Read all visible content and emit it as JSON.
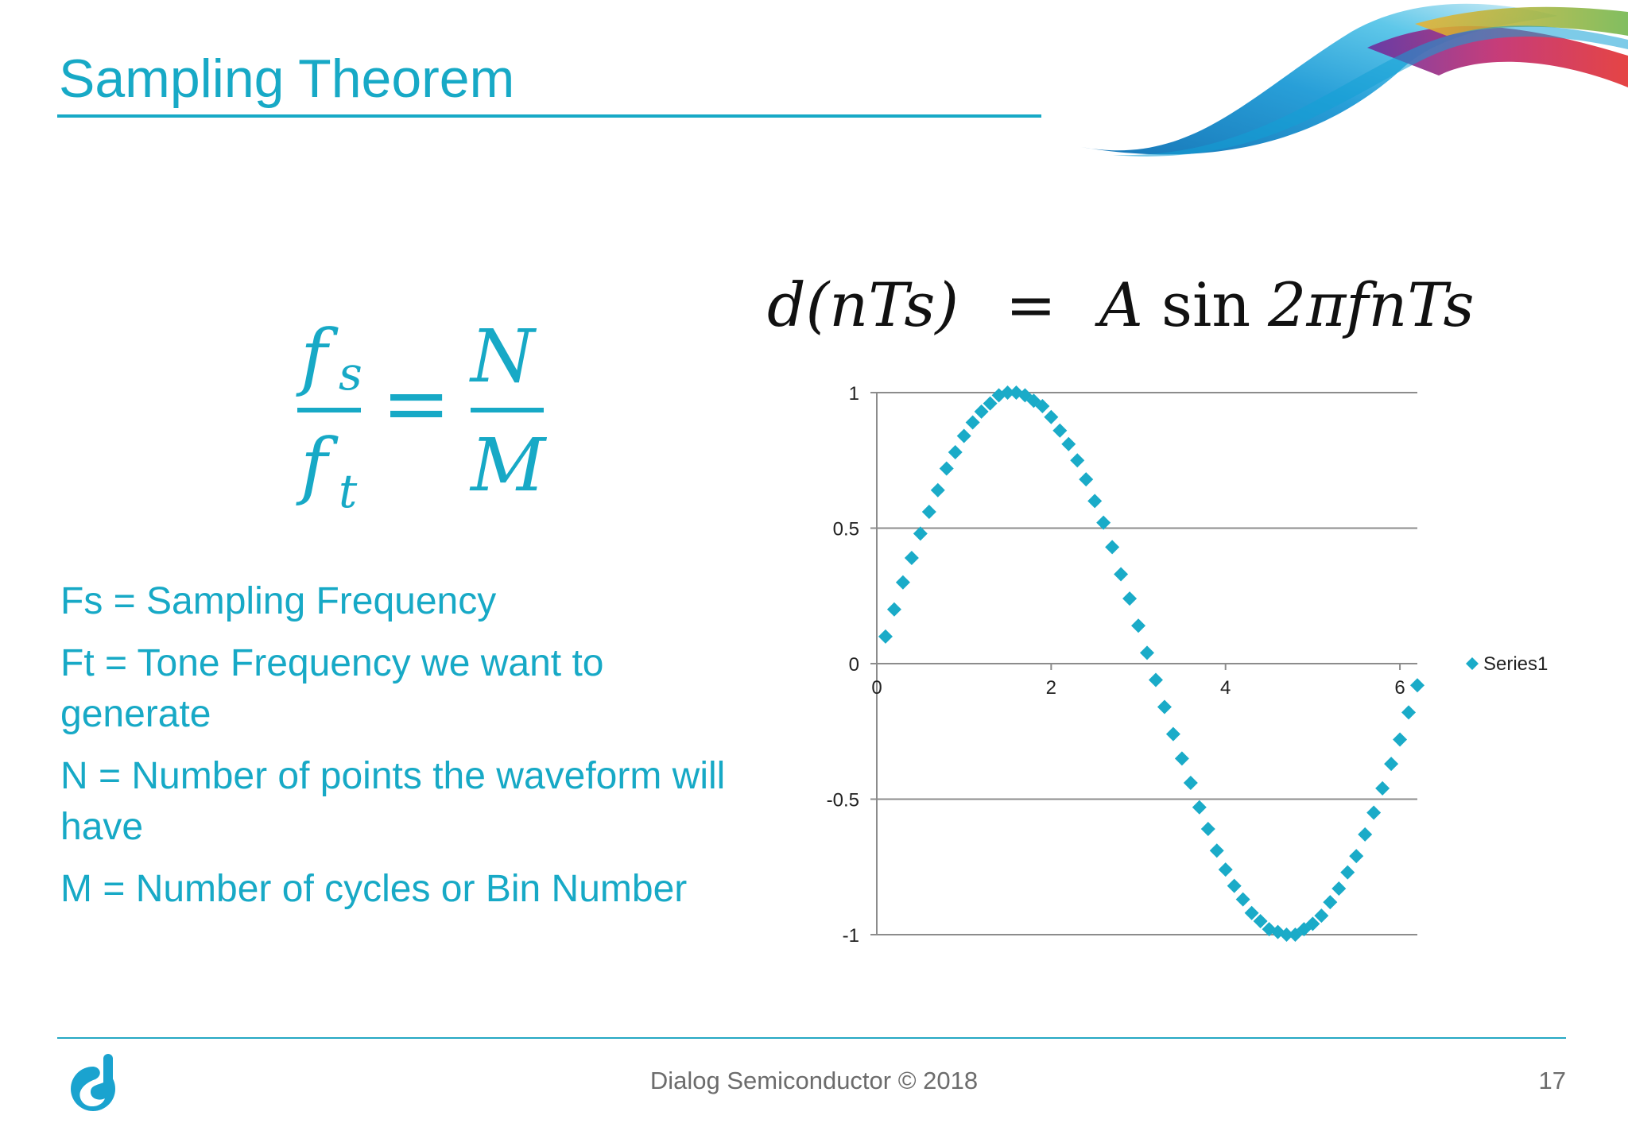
{
  "slide": {
    "title": "Sampling Theorem",
    "page_number": "17",
    "footer": "Dialog Semiconductor © 2018"
  },
  "formulas": {
    "ratio": {
      "numerator_left": "f",
      "numerator_left_sub": "s",
      "denominator_left": "f",
      "denominator_left_sub": "t",
      "equals": "=",
      "numerator_right": "N",
      "denominator_right": "M"
    },
    "signal": {
      "lhs": "d(nTs)",
      "equals": "=",
      "rhs_amp": "A",
      "rhs_fn": "sin",
      "rhs_arg": "2πfnTs"
    }
  },
  "definitions": [
    "Fs = Sampling Frequency",
    "Ft = Tone Frequency we want to generate",
    "N = Number of points the waveform will have",
    "M = Number of cycles or Bin Number"
  ],
  "colors": {
    "accent": "#17a9c6",
    "marker": "#1aabc8",
    "grid": "#8c8c8c",
    "footer_text": "#6c6c6c"
  },
  "icons": {
    "logo": "dialog-logo-icon",
    "decoration": "ribbon-swoosh"
  },
  "chart_data": {
    "type": "scatter",
    "title": "",
    "xlabel": "",
    "ylabel": "",
    "xlim": [
      0,
      6.2
    ],
    "ylim": [
      -1,
      1
    ],
    "x_ticks": [
      "0",
      "2",
      "4",
      "6"
    ],
    "y_ticks": [
      "1",
      "0.5",
      "0",
      "-0.5",
      "-1"
    ],
    "grid": "horizontal",
    "legend": "right",
    "series": [
      {
        "name": "Series1",
        "marker": "diamond",
        "x": [
          0.1,
          0.2,
          0.3,
          0.4,
          0.5,
          0.6,
          0.7,
          0.8,
          0.9,
          1.0,
          1.1,
          1.2,
          1.3,
          1.4,
          1.5,
          1.6,
          1.7,
          1.8,
          1.9,
          2.0,
          2.1,
          2.2,
          2.3,
          2.4,
          2.5,
          2.6,
          2.7,
          2.8,
          2.9,
          3.0,
          3.1,
          3.2,
          3.3,
          3.4,
          3.5,
          3.6,
          3.7,
          3.8,
          3.9,
          4.0,
          4.1,
          4.2,
          4.3,
          4.4,
          4.5,
          4.6,
          4.7,
          4.8,
          4.9,
          5.0,
          5.1,
          5.2,
          5.3,
          5.4,
          5.5,
          5.6,
          5.7,
          5.8,
          5.9,
          6.0,
          6.1,
          6.2
        ],
        "y": [
          0.1,
          0.2,
          0.3,
          0.39,
          0.48,
          0.56,
          0.64,
          0.72,
          0.78,
          0.84,
          0.89,
          0.93,
          0.96,
          0.99,
          1.0,
          1.0,
          0.99,
          0.97,
          0.95,
          0.91,
          0.86,
          0.81,
          0.75,
          0.68,
          0.6,
          0.52,
          0.43,
          0.33,
          0.24,
          0.14,
          0.04,
          -0.06,
          -0.16,
          -0.26,
          -0.35,
          -0.44,
          -0.53,
          -0.61,
          -0.69,
          -0.76,
          -0.82,
          -0.87,
          -0.92,
          -0.95,
          -0.98,
          -0.99,
          -1.0,
          -1.0,
          -0.98,
          -0.96,
          -0.93,
          -0.88,
          -0.83,
          -0.77,
          -0.71,
          -0.63,
          -0.55,
          -0.46,
          -0.37,
          -0.28,
          -0.18,
          -0.08
        ]
      }
    ]
  }
}
